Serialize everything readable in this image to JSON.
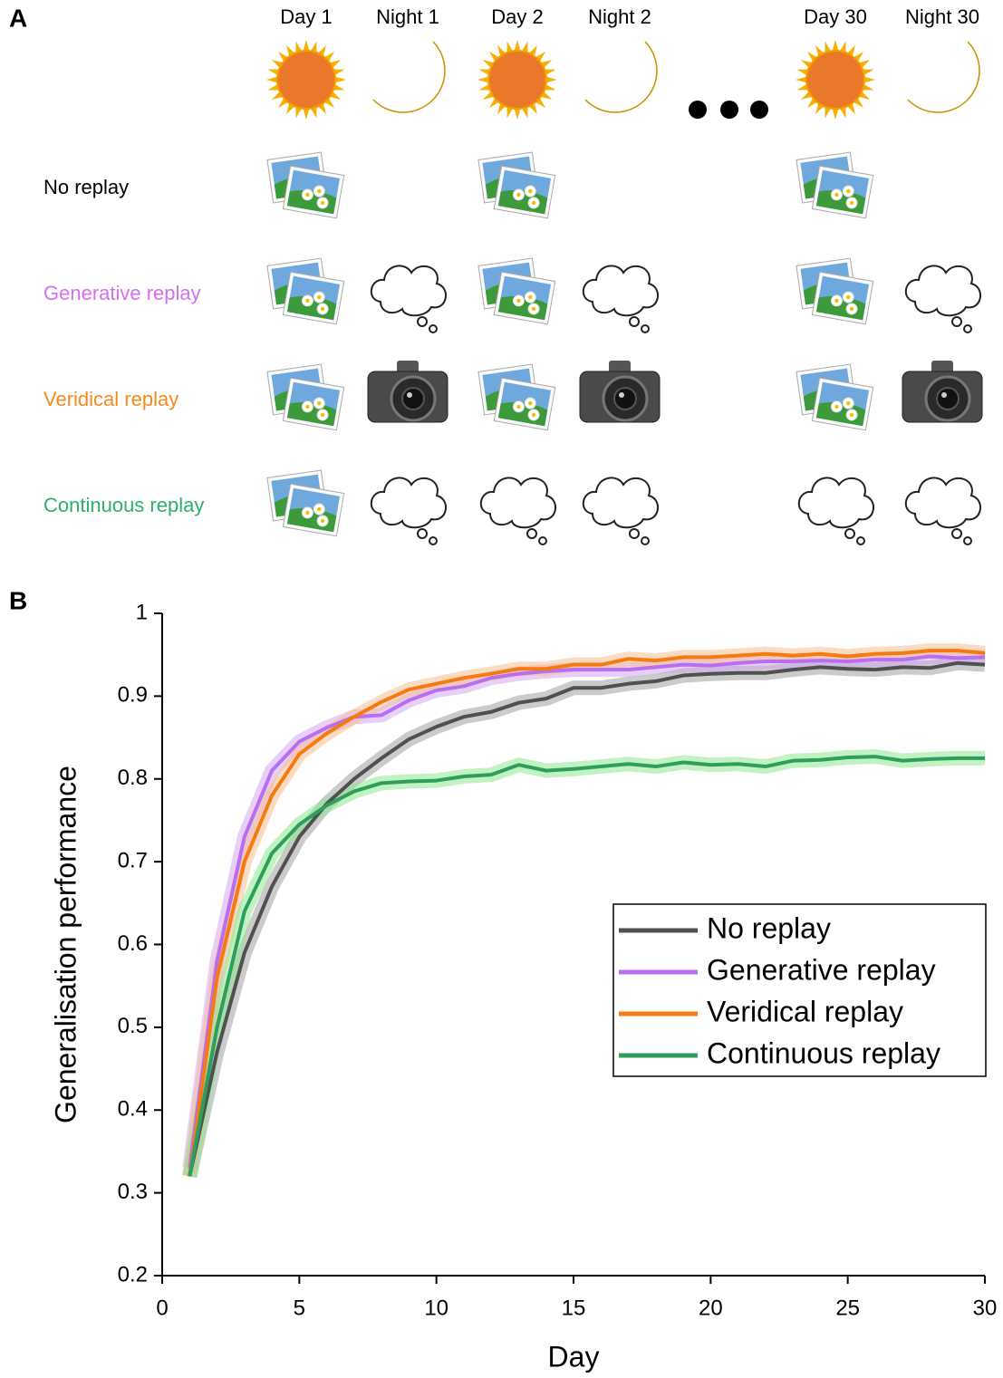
{
  "panel_labels": [
    "A",
    "B"
  ],
  "diagram": {
    "columns": [
      "Day 1",
      "Night 1",
      "Day 2",
      "Night 2",
      "Day 30",
      "Night 30"
    ],
    "rows": [
      {
        "label": "No replay",
        "color": "#000000"
      },
      {
        "label": "Generative replay",
        "color": "#d66ef0"
      },
      {
        "label": "Veridical replay",
        "color": "#f28a1c"
      },
      {
        "label": "Continuous replay",
        "color": "#2fb06a"
      }
    ]
  },
  "chart_data": {
    "type": "line",
    "x_label": "Day",
    "y_label": "Generalisation performance",
    "x": [
      1,
      2,
      3,
      4,
      5,
      6,
      7,
      8,
      9,
      10,
      11,
      12,
      13,
      14,
      15,
      16,
      17,
      18,
      19,
      20,
      21,
      22,
      23,
      24,
      25,
      26,
      27,
      28,
      29,
      30
    ],
    "xlim": [
      0,
      30
    ],
    "xticks": [
      0,
      5,
      10,
      15,
      20,
      25,
      30
    ],
    "ylim": [
      0.2,
      1
    ],
    "yticks": [
      0.2,
      0.3,
      0.4,
      0.5,
      0.6,
      0.7,
      0.8,
      0.9,
      1
    ],
    "legend": "lower right",
    "series": [
      {
        "name": "No replay",
        "color": "#505050",
        "band_color": "#a0a0a0",
        "values": [
          0.32,
          0.47,
          0.59,
          0.67,
          0.73,
          0.77,
          0.8,
          0.825,
          0.848,
          0.863,
          0.875,
          0.881,
          0.892,
          0.897,
          0.91,
          0.91,
          0.915,
          0.918,
          0.925,
          0.927,
          0.928,
          0.928,
          0.932,
          0.935,
          0.933,
          0.932,
          0.935,
          0.934,
          0.94,
          0.938
        ]
      },
      {
        "name": "Generative replay",
        "color": "#b86ef0",
        "band_color": "#d4a8f5",
        "values": [
          0.33,
          0.58,
          0.73,
          0.81,
          0.845,
          0.862,
          0.875,
          0.877,
          0.895,
          0.907,
          0.912,
          0.922,
          0.927,
          0.93,
          0.932,
          0.932,
          0.932,
          0.935,
          0.938,
          0.937,
          0.94,
          0.942,
          0.942,
          0.943,
          0.942,
          0.944,
          0.944,
          0.948,
          0.946,
          0.947
        ]
      },
      {
        "name": "Veridical replay",
        "color": "#f57a10",
        "band_color": "#f8c090",
        "values": [
          0.32,
          0.56,
          0.7,
          0.78,
          0.83,
          0.855,
          0.875,
          0.893,
          0.908,
          0.915,
          0.922,
          0.927,
          0.933,
          0.933,
          0.938,
          0.938,
          0.945,
          0.943,
          0.947,
          0.947,
          0.949,
          0.951,
          0.949,
          0.951,
          0.948,
          0.951,
          0.952,
          0.955,
          0.955,
          0.952
        ]
      },
      {
        "name": "Continuous replay",
        "color": "#2e9e5e",
        "band_color": "#8ee88e",
        "values": [
          0.32,
          0.5,
          0.64,
          0.71,
          0.745,
          0.768,
          0.785,
          0.795,
          0.797,
          0.798,
          0.803,
          0.805,
          0.817,
          0.81,
          0.812,
          0.815,
          0.818,
          0.815,
          0.82,
          0.817,
          0.818,
          0.815,
          0.822,
          0.823,
          0.826,
          0.827,
          0.822,
          0.824,
          0.825,
          0.825
        ]
      }
    ]
  }
}
